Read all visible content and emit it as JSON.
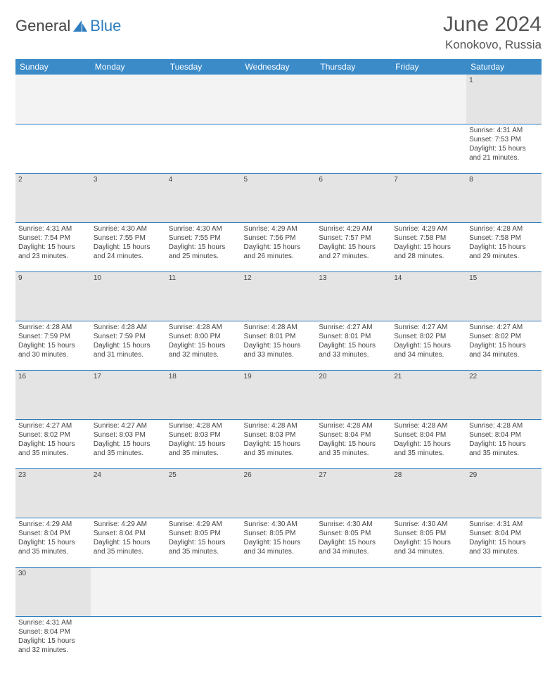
{
  "logo": {
    "part1": "General",
    "part2": "Blue"
  },
  "title": "June 2024",
  "location": "Konokovo, Russia",
  "colors": {
    "header_bg": "#3b8bc9",
    "header_text": "#ffffff",
    "daynum_bg": "#e4e4e4",
    "border": "#2d7dbf",
    "logo_blue": "#2d7dbf",
    "text": "#444444"
  },
  "weekdays": [
    "Sunday",
    "Monday",
    "Tuesday",
    "Wednesday",
    "Thursday",
    "Friday",
    "Saturday"
  ],
  "weeks": [
    {
      "nums": [
        "",
        "",
        "",
        "",
        "",
        "",
        "1"
      ],
      "cells": [
        null,
        null,
        null,
        null,
        null,
        null,
        {
          "sunrise": "4:31 AM",
          "sunset": "7:53 PM",
          "daylight": "15 hours and 21 minutes."
        }
      ]
    },
    {
      "nums": [
        "2",
        "3",
        "4",
        "5",
        "6",
        "7",
        "8"
      ],
      "cells": [
        {
          "sunrise": "4:31 AM",
          "sunset": "7:54 PM",
          "daylight": "15 hours and 23 minutes."
        },
        {
          "sunrise": "4:30 AM",
          "sunset": "7:55 PM",
          "daylight": "15 hours and 24 minutes."
        },
        {
          "sunrise": "4:30 AM",
          "sunset": "7:55 PM",
          "daylight": "15 hours and 25 minutes."
        },
        {
          "sunrise": "4:29 AM",
          "sunset": "7:56 PM",
          "daylight": "15 hours and 26 minutes."
        },
        {
          "sunrise": "4:29 AM",
          "sunset": "7:57 PM",
          "daylight": "15 hours and 27 minutes."
        },
        {
          "sunrise": "4:29 AM",
          "sunset": "7:58 PM",
          "daylight": "15 hours and 28 minutes."
        },
        {
          "sunrise": "4:28 AM",
          "sunset": "7:58 PM",
          "daylight": "15 hours and 29 minutes."
        }
      ]
    },
    {
      "nums": [
        "9",
        "10",
        "11",
        "12",
        "13",
        "14",
        "15"
      ],
      "cells": [
        {
          "sunrise": "4:28 AM",
          "sunset": "7:59 PM",
          "daylight": "15 hours and 30 minutes."
        },
        {
          "sunrise": "4:28 AM",
          "sunset": "7:59 PM",
          "daylight": "15 hours and 31 minutes."
        },
        {
          "sunrise": "4:28 AM",
          "sunset": "8:00 PM",
          "daylight": "15 hours and 32 minutes."
        },
        {
          "sunrise": "4:28 AM",
          "sunset": "8:01 PM",
          "daylight": "15 hours and 33 minutes."
        },
        {
          "sunrise": "4:27 AM",
          "sunset": "8:01 PM",
          "daylight": "15 hours and 33 minutes."
        },
        {
          "sunrise": "4:27 AM",
          "sunset": "8:02 PM",
          "daylight": "15 hours and 34 minutes."
        },
        {
          "sunrise": "4:27 AM",
          "sunset": "8:02 PM",
          "daylight": "15 hours and 34 minutes."
        }
      ]
    },
    {
      "nums": [
        "16",
        "17",
        "18",
        "19",
        "20",
        "21",
        "22"
      ],
      "cells": [
        {
          "sunrise": "4:27 AM",
          "sunset": "8:02 PM",
          "daylight": "15 hours and 35 minutes."
        },
        {
          "sunrise": "4:27 AM",
          "sunset": "8:03 PM",
          "daylight": "15 hours and 35 minutes."
        },
        {
          "sunrise": "4:28 AM",
          "sunset": "8:03 PM",
          "daylight": "15 hours and 35 minutes."
        },
        {
          "sunrise": "4:28 AM",
          "sunset": "8:03 PM",
          "daylight": "15 hours and 35 minutes."
        },
        {
          "sunrise": "4:28 AM",
          "sunset": "8:04 PM",
          "daylight": "15 hours and 35 minutes."
        },
        {
          "sunrise": "4:28 AM",
          "sunset": "8:04 PM",
          "daylight": "15 hours and 35 minutes."
        },
        {
          "sunrise": "4:28 AM",
          "sunset": "8:04 PM",
          "daylight": "15 hours and 35 minutes."
        }
      ]
    },
    {
      "nums": [
        "23",
        "24",
        "25",
        "26",
        "27",
        "28",
        "29"
      ],
      "cells": [
        {
          "sunrise": "4:29 AM",
          "sunset": "8:04 PM",
          "daylight": "15 hours and 35 minutes."
        },
        {
          "sunrise": "4:29 AM",
          "sunset": "8:04 PM",
          "daylight": "15 hours and 35 minutes."
        },
        {
          "sunrise": "4:29 AM",
          "sunset": "8:05 PM",
          "daylight": "15 hours and 35 minutes."
        },
        {
          "sunrise": "4:30 AM",
          "sunset": "8:05 PM",
          "daylight": "15 hours and 34 minutes."
        },
        {
          "sunrise": "4:30 AM",
          "sunset": "8:05 PM",
          "daylight": "15 hours and 34 minutes."
        },
        {
          "sunrise": "4:30 AM",
          "sunset": "8:05 PM",
          "daylight": "15 hours and 34 minutes."
        },
        {
          "sunrise": "4:31 AM",
          "sunset": "8:04 PM",
          "daylight": "15 hours and 33 minutes."
        }
      ]
    },
    {
      "nums": [
        "30",
        "",
        "",
        "",
        "",
        "",
        ""
      ],
      "cells": [
        {
          "sunrise": "4:31 AM",
          "sunset": "8:04 PM",
          "daylight": "15 hours and 32 minutes."
        },
        null,
        null,
        null,
        null,
        null,
        null
      ],
      "last": true
    }
  ]
}
